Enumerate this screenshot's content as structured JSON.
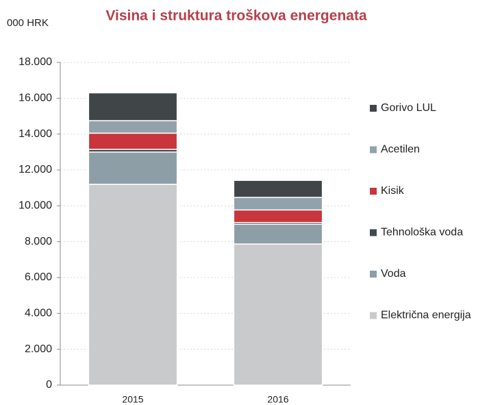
{
  "chart_data": {
    "type": "stacked_bar",
    "title": "Visina i struktura troškova energenata",
    "y_unit_label": "000 HRK",
    "categories": [
      "2015",
      "2016"
    ],
    "series": [
      {
        "name": "Električna energija",
        "color": "#c9cacc",
        "values": [
          11200,
          7870
        ]
      },
      {
        "name": "Voda",
        "color": "#8d9ea7",
        "values": [
          1800,
          1100
        ]
      },
      {
        "name": "Tehnološka voda",
        "color": "#3f4a4d",
        "values": [
          150,
          100
        ]
      },
      {
        "name": "Kisik",
        "color": "#c8353a",
        "values": [
          900,
          700
        ]
      },
      {
        "name": "Acetilen",
        "color": "#92a2aa",
        "values": [
          700,
          700
        ]
      },
      {
        "name": "Gorivo LUL",
        "color": "#404548",
        "values": [
          1550,
          950
        ]
      }
    ],
    "ylim": [
      0,
      18000
    ],
    "yticks": [
      0,
      {
        "value": 2000,
        "label": "2.000"
      },
      {
        "value": 4000,
        "label": "4.000"
      },
      {
        "value": 6000,
        "label": "6.000"
      },
      {
        "value": 8000,
        "label": "8.000"
      },
      {
        "value": 10000,
        "label": "10.000"
      },
      {
        "value": 12000,
        "label": "12.000"
      },
      {
        "value": 14000,
        "label": "14.000"
      },
      {
        "value": 16000,
        "label": "16.000"
      },
      {
        "value": 18000,
        "label": "18.000"
      }
    ],
    "grid": true
  }
}
